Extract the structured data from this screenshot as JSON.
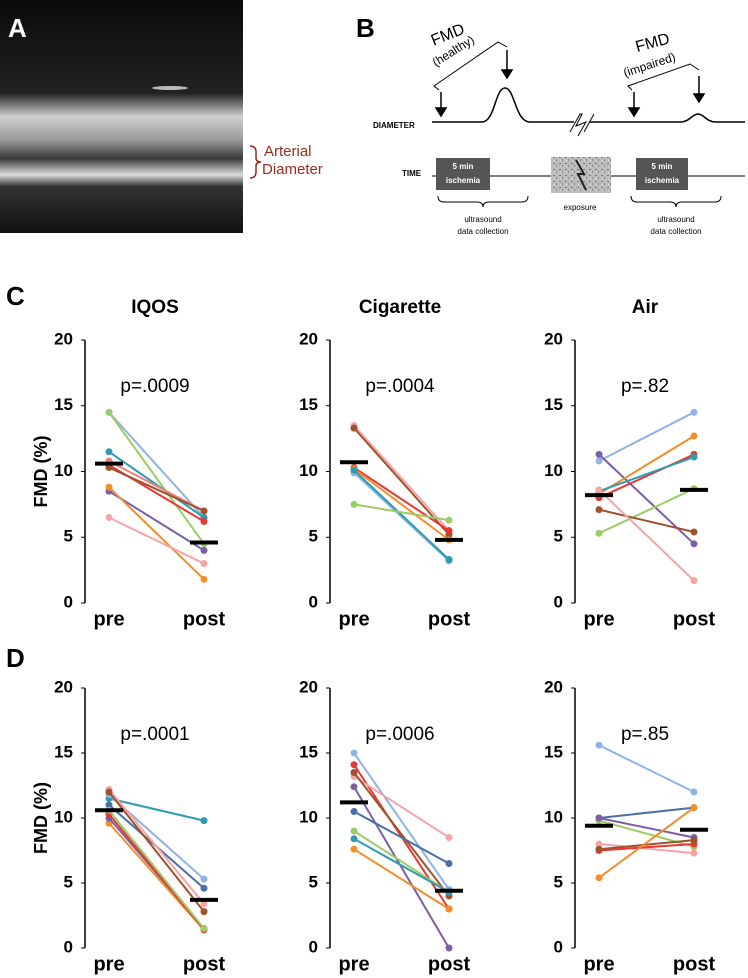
{
  "panel_labels": [
    "A",
    "B",
    "C",
    "D"
  ],
  "panel_a": {
    "annotation_line1": "Arterial",
    "annotation_line2": "Diameter"
  },
  "panel_b": {
    "fmd_healthy": "FMD",
    "healthy": "(healthy)",
    "fmd_impaired": "FMD",
    "impaired": "(impaired)",
    "diameter": "DIAMETER",
    "time": "TIME",
    "ischemia_1": [
      "5 min",
      "ischemia"
    ],
    "ischemia_2": [
      "5 min",
      "ischemia"
    ],
    "exposure": "exposure",
    "collection_1": [
      "ultrasound",
      "data collection"
    ],
    "collection_2": [
      "ultrasound",
      "data collection"
    ]
  },
  "chart_data": [
    {
      "type": "line",
      "title": "IQOS",
      "ylabel": "FMD (%)",
      "annotation": "p=.0009",
      "categories": [
        "pre",
        "post"
      ],
      "ylim": [
        0,
        20
      ],
      "yticks": [
        0,
        5,
        10,
        15,
        20
      ],
      "means": [
        10.6,
        4.6
      ],
      "mean_color": "#000000",
      "series": [
        {
          "color": "#8fb4e3",
          "values": [
            14.5,
            6.5
          ]
        },
        {
          "color": "#9ccc65",
          "values": [
            14.5,
            4.5
          ]
        },
        {
          "color": "#2e9bb0",
          "values": [
            11.5,
            6.5
          ]
        },
        {
          "color": "#e53935",
          "values": [
            10.5,
            6.2
          ]
        },
        {
          "color": "#f08080",
          "values": [
            10.8,
            7.0
          ]
        },
        {
          "color": "#a0522d",
          "values": [
            10.3,
            7.0
          ]
        },
        {
          "color": "#7b5ea7",
          "values": [
            8.5,
            4.0
          ]
        },
        {
          "color": "#f28e2b",
          "values": [
            8.8,
            1.8
          ]
        },
        {
          "color": "#f4a6a6",
          "values": [
            6.5,
            3.0
          ]
        }
      ]
    },
    {
      "type": "line",
      "title": "Cigarette",
      "annotation": "p=.0004",
      "categories": [
        "pre",
        "post"
      ],
      "ylim": [
        0,
        20
      ],
      "yticks": [
        0,
        5,
        10,
        15,
        20
      ],
      "means": [
        10.7,
        4.8
      ],
      "mean_color": "#000000",
      "series": [
        {
          "color": "#f4a6a6",
          "values": [
            13.5,
            5.5
          ]
        },
        {
          "color": "#a0522d",
          "values": [
            13.3,
            5.2
          ]
        },
        {
          "color": "#e53935",
          "values": [
            10.3,
            5.5
          ]
        },
        {
          "color": "#f28e2b",
          "values": [
            10.2,
            4.8
          ]
        },
        {
          "color": "#7b5ea7",
          "values": [
            10.0,
            3.3
          ]
        },
        {
          "color": "#8fb4e3",
          "values": [
            9.9,
            3.2
          ]
        },
        {
          "color": "#2e9bb0",
          "values": [
            10.1,
            3.3
          ]
        },
        {
          "color": "#9ccc65",
          "values": [
            7.5,
            6.3
          ]
        }
      ]
    },
    {
      "type": "line",
      "title": "Air",
      "annotation": "p=.82",
      "categories": [
        "pre",
        "post"
      ],
      "ylim": [
        0,
        20
      ],
      "yticks": [
        0,
        5,
        10,
        15,
        20
      ],
      "means": [
        8.2,
        8.6
      ],
      "mean_color": "#000000",
      "series": [
        {
          "color": "#8fb4e3",
          "values": [
            10.8,
            14.5
          ]
        },
        {
          "color": "#7b5ea7",
          "values": [
            11.3,
            4.5
          ]
        },
        {
          "color": "#f28e2b",
          "values": [
            8.3,
            12.7
          ]
        },
        {
          "color": "#e53935",
          "values": [
            8.0,
            11.3
          ]
        },
        {
          "color": "#2e9bb0",
          "values": [
            8.5,
            11.1
          ]
        },
        {
          "color": "#9ccc65",
          "values": [
            5.3,
            8.7
          ]
        },
        {
          "color": "#a0522d",
          "values": [
            7.1,
            5.4
          ]
        },
        {
          "color": "#f4a6a6",
          "values": [
            8.6,
            1.7
          ]
        }
      ]
    },
    {
      "type": "line",
      "ylabel": "FMD (%)",
      "annotation": "p=.0001",
      "categories": [
        "pre",
        "post"
      ],
      "ylim": [
        0,
        20
      ],
      "yticks": [
        0,
        5,
        10,
        15,
        20
      ],
      "means": [
        10.6,
        3.7
      ],
      "mean_color": "#000000",
      "series": [
        {
          "color": "#2e9bb0",
          "values": [
            11.5,
            9.8
          ]
        },
        {
          "color": "#8fb4e3",
          "values": [
            11.8,
            5.3
          ]
        },
        {
          "color": "#4a6fa5",
          "values": [
            11.0,
            4.6
          ]
        },
        {
          "color": "#f4a6a6",
          "values": [
            12.2,
            3.4
          ]
        },
        {
          "color": "#a0522d",
          "values": [
            12.0,
            2.8
          ]
        },
        {
          "color": "#f28e2b",
          "values": [
            9.6,
            1.4
          ]
        },
        {
          "color": "#7b5ea7",
          "values": [
            10.0,
            1.5
          ]
        },
        {
          "color": "#e53935",
          "values": [
            10.3,
            1.4
          ]
        },
        {
          "color": "#9ccc65",
          "values": [
            10.6,
            1.5
          ]
        }
      ]
    },
    {
      "type": "line",
      "annotation": "p=.0006",
      "categories": [
        "pre",
        "post"
      ],
      "ylim": [
        0,
        20
      ],
      "yticks": [
        0,
        5,
        10,
        15,
        20
      ],
      "means": [
        11.2,
        4.4
      ],
      "mean_color": "#000000",
      "series": [
        {
          "color": "#8fb4e3",
          "values": [
            15.0,
            4.5
          ]
        },
        {
          "color": "#e53935",
          "values": [
            14.1,
            3.0
          ]
        },
        {
          "color": "#f4a6a6",
          "values": [
            13.2,
            8.5
          ]
        },
        {
          "color": "#a0522d",
          "values": [
            13.5,
            4.0
          ]
        },
        {
          "color": "#7b5ea7",
          "values": [
            12.4,
            0
          ]
        },
        {
          "color": "#4a6fa5",
          "values": [
            10.5,
            6.5
          ]
        },
        {
          "color": "#9ccc65",
          "values": [
            9.0,
            4.3
          ]
        },
        {
          "color": "#2e9bb0",
          "values": [
            8.4,
            4.3
          ]
        },
        {
          "color": "#f28e2b",
          "values": [
            7.6,
            3.0
          ]
        }
      ]
    },
    {
      "type": "line",
      "annotation": "p=.85",
      "categories": [
        "pre",
        "post"
      ],
      "ylim": [
        0,
        20
      ],
      "yticks": [
        0,
        5,
        10,
        15,
        20
      ],
      "means": [
        9.4,
        9.1
      ],
      "mean_color": "#000000",
      "series": [
        {
          "color": "#8fb4e3",
          "values": [
            15.6,
            12.0
          ]
        },
        {
          "color": "#4a6fa5",
          "values": [
            10.0,
            10.8
          ]
        },
        {
          "color": "#9ccc65",
          "values": [
            9.8,
            7.8
          ]
        },
        {
          "color": "#7b5ea7",
          "values": [
            10.0,
            8.5
          ]
        },
        {
          "color": "#f4a6a6",
          "values": [
            8.0,
            7.3
          ]
        },
        {
          "color": "#e53935",
          "values": [
            7.5,
            8.0
          ]
        },
        {
          "color": "#a0522d",
          "values": [
            7.6,
            8.3
          ]
        },
        {
          "color": "#f28e2b",
          "values": [
            5.4,
            10.8
          ]
        }
      ]
    }
  ]
}
